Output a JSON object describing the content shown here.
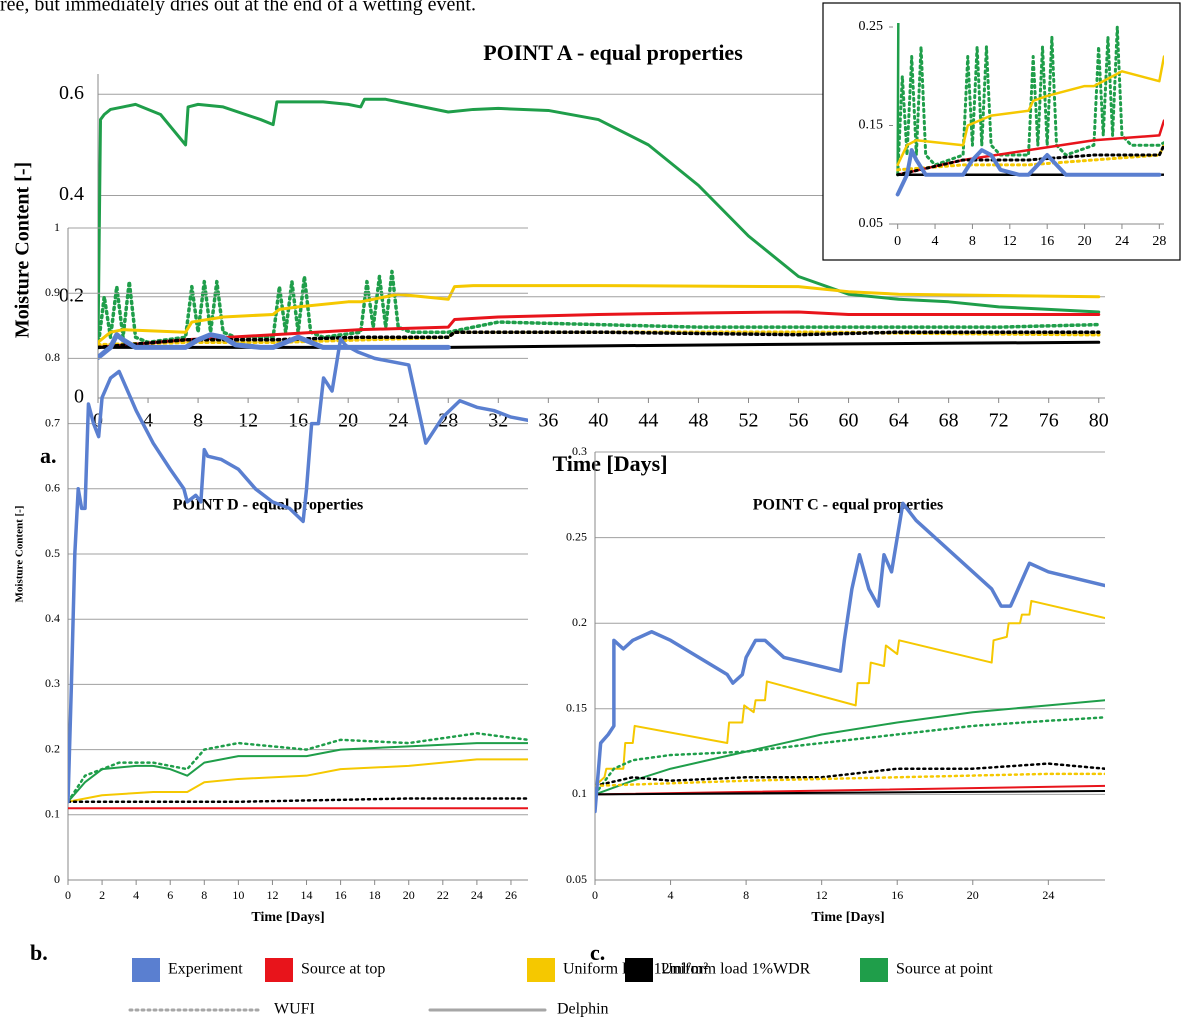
{
  "text_fragment": "ree, but immediately dries out at the end of a wetting event.",
  "legend": {
    "colors": [
      {
        "name": "Experiment",
        "color": "#5a7fd0"
      },
      {
        "name": "Source at top",
        "color": "#e8141b"
      },
      {
        "name": "Uniform load 12ml/m²",
        "color": "#f5c800"
      },
      {
        "name": "Uniform load 1%WDR",
        "color": "#000000"
      },
      {
        "name": "Source at point",
        "color": "#1f9e4a"
      }
    ],
    "models": [
      {
        "name": "WUFI",
        "dash": "2 4",
        "color": "#a6a6a6"
      },
      {
        "name": "Delphin",
        "dash": "none",
        "color": "#a6a6a6"
      }
    ]
  },
  "chart_data": [
    {
      "type": "line",
      "title": "POINT A - equal properties",
      "label": "a.",
      "xlabel": "Time [Days]",
      "ylabel": "Moisture Content [-]",
      "xlim": [
        0,
        80.5
      ],
      "ylim": [
        0,
        0.64
      ],
      "xticks": [
        0,
        4,
        8,
        12,
        16,
        20,
        24,
        28,
        32,
        36,
        40,
        44,
        48,
        52,
        56,
        60,
        64,
        68,
        72,
        76,
        80
      ],
      "yticks": [
        0,
        0.2,
        0.4,
        0.6
      ],
      "grid": true,
      "series": [
        {
          "name": "Source at point",
          "model": "Delphin",
          "x": [
            0,
            0.2,
            0.5,
            1,
            2,
            3,
            5,
            7,
            7.2,
            8,
            10,
            13,
            14,
            14.3,
            16,
            18,
            20,
            21,
            21.3,
            23,
            25,
            28,
            30,
            32,
            36,
            40,
            44,
            48,
            52,
            56,
            60,
            64,
            68,
            72,
            76,
            80
          ],
          "values": [
            0.1,
            0.55,
            0.56,
            0.57,
            0.575,
            0.58,
            0.56,
            0.5,
            0.575,
            0.58,
            0.575,
            0.55,
            0.54,
            0.585,
            0.585,
            0.585,
            0.58,
            0.575,
            0.59,
            0.59,
            0.58,
            0.565,
            0.57,
            0.572,
            0.568,
            0.55,
            0.5,
            0.42,
            0.32,
            0.24,
            0.205,
            0.195,
            0.19,
            0.18,
            0.175,
            0.17
          ]
        },
        {
          "name": "Source at point",
          "model": "WUFI",
          "x": [
            0,
            0.5,
            1,
            1.5,
            2,
            2.5,
            3,
            4,
            7,
            7.5,
            8,
            8.5,
            9,
            9.5,
            10,
            11,
            14,
            14.5,
            15,
            15.5,
            16,
            16.5,
            17,
            18,
            21,
            21.5,
            22,
            22.5,
            23,
            23.5,
            24,
            25,
            28,
            32,
            40,
            48,
            56,
            64,
            72,
            80
          ],
          "values": [
            0.1,
            0.2,
            0.12,
            0.22,
            0.12,
            0.23,
            0.12,
            0.11,
            0.12,
            0.22,
            0.13,
            0.23,
            0.13,
            0.23,
            0.13,
            0.12,
            0.12,
            0.22,
            0.13,
            0.23,
            0.13,
            0.24,
            0.13,
            0.12,
            0.13,
            0.23,
            0.14,
            0.24,
            0.14,
            0.25,
            0.14,
            0.13,
            0.13,
            0.15,
            0.145,
            0.14,
            0.14,
            0.14,
            0.14,
            0.145
          ]
        },
        {
          "name": "Uniform load 12ml/m²",
          "model": "Delphin",
          "x": [
            0,
            1,
            2,
            7,
            7.5,
            10,
            14,
            14.5,
            16,
            20,
            21,
            23,
            24,
            28,
            28.5,
            30,
            40,
            56,
            60,
            64,
            80
          ],
          "values": [
            0.11,
            0.13,
            0.135,
            0.13,
            0.15,
            0.16,
            0.165,
            0.175,
            0.18,
            0.19,
            0.19,
            0.2,
            0.205,
            0.195,
            0.22,
            0.222,
            0.222,
            0.22,
            0.21,
            0.205,
            0.2
          ]
        },
        {
          "name": "Uniform load 12ml/m²",
          "model": "WUFI",
          "x": [
            0,
            7,
            14,
            21,
            28,
            28.5,
            40,
            56,
            80
          ],
          "values": [
            0.105,
            0.11,
            0.11,
            0.115,
            0.12,
            0.13,
            0.13,
            0.13,
            0.125
          ]
        },
        {
          "name": "Source at top",
          "model": "Delphin",
          "x": [
            0,
            7,
            14,
            21,
            28,
            28.5,
            32,
            40,
            48,
            56,
            60,
            70,
            80
          ],
          "values": [
            0.1,
            0.115,
            0.125,
            0.135,
            0.14,
            0.155,
            0.16,
            0.165,
            0.168,
            0.17,
            0.165,
            0.165,
            0.165
          ]
        },
        {
          "name": "Uniform load 1%WDR",
          "model": "WUFI",
          "x": [
            0,
            7,
            14,
            21,
            28,
            28.5,
            40,
            56,
            64,
            80
          ],
          "values": [
            0.1,
            0.115,
            0.115,
            0.12,
            0.12,
            0.13,
            0.13,
            0.125,
            0.13,
            0.13
          ]
        },
        {
          "name": "Uniform load 1%WDR",
          "model": "Delphin",
          "x": [
            0,
            28,
            40,
            60,
            80
          ],
          "values": [
            0.1,
            0.1,
            0.103,
            0.107,
            0.11
          ]
        },
        {
          "name": "Experiment",
          "x": [
            0,
            1,
            1.5,
            2,
            3,
            4,
            7,
            8,
            9,
            10,
            11,
            13,
            14,
            15,
            16,
            17,
            18,
            21,
            22,
            28
          ],
          "values": [
            0.08,
            0.1,
            0.125,
            0.115,
            0.1,
            0.1,
            0.1,
            0.115,
            0.125,
            0.12,
            0.105,
            0.1,
            0.1,
            0.11,
            0.12,
            0.11,
            0.1,
            0.1,
            0.1,
            0.1
          ]
        }
      ]
    },
    {
      "type": "line",
      "xlim": [
        -0.5,
        28.5
      ],
      "ylim": [
        0.05,
        0.25
      ],
      "xticks": [
        0,
        4,
        8,
        12,
        16,
        20,
        24,
        28
      ],
      "yticks": [
        0.05,
        0.15,
        0.25
      ],
      "grid": false
    },
    {
      "type": "line",
      "title": "POINT D - equal properties",
      "label": "b.",
      "xlabel": "Time [Days]",
      "ylabel": "Moisture Content [-]",
      "xlim": [
        0,
        27
      ],
      "ylim": [
        0,
        1
      ],
      "xticks": [
        0,
        2,
        4,
        6,
        8,
        10,
        12,
        14,
        16,
        18,
        20,
        22,
        24,
        26
      ],
      "yticks": [
        0,
        0.1,
        0.2,
        0.3,
        0.4,
        0.5,
        0.6,
        0.7,
        0.8,
        0.9,
        1
      ],
      "grid": true,
      "series": [
        {
          "name": "Source at point",
          "model": "Delphin",
          "x": [
            0,
            1,
            2,
            4,
            5,
            6,
            7,
            8,
            10,
            14,
            16,
            20,
            24,
            27
          ],
          "values": [
            0.12,
            0.15,
            0.17,
            0.175,
            0.175,
            0.17,
            0.16,
            0.18,
            0.19,
            0.19,
            0.2,
            0.205,
            0.21,
            0.21
          ]
        },
        {
          "name": "Source at point",
          "model": "WUFI",
          "x": [
            0,
            1,
            3,
            5,
            7,
            8,
            10,
            14,
            16,
            20,
            24,
            27
          ],
          "values": [
            0.12,
            0.16,
            0.18,
            0.18,
            0.17,
            0.2,
            0.21,
            0.2,
            0.215,
            0.21,
            0.225,
            0.215
          ]
        },
        {
          "name": "Uniform load 12ml/m²",
          "model": "Delphin",
          "x": [
            0,
            2,
            5,
            7,
            8,
            10,
            14,
            16,
            20,
            24,
            27
          ],
          "values": [
            0.12,
            0.13,
            0.135,
            0.135,
            0.15,
            0.155,
            0.16,
            0.17,
            0.175,
            0.185,
            0.185
          ]
        },
        {
          "name": "Uniform load 1%WDR",
          "model": "WUFI",
          "x": [
            0,
            10,
            20,
            27
          ],
          "values": [
            0.12,
            0.12,
            0.125,
            0.125
          ]
        },
        {
          "name": "Source at top",
          "model": "Delphin",
          "x": [
            0,
            27
          ],
          "values": [
            0.11,
            0.11
          ]
        },
        {
          "name": "Experiment",
          "x": [
            0,
            0.2,
            0.4,
            0.6,
            0.8,
            1,
            1.2,
            1.5,
            1.8,
            2,
            2.5,
            3,
            4,
            5,
            6,
            6.8,
            7,
            7.5,
            7.8,
            8,
            8.2,
            9,
            10,
            11,
            12,
            13,
            13.8,
            14,
            14.3,
            14.7,
            15,
            15.5,
            16,
            16.3,
            17,
            18,
            20,
            21,
            22,
            23,
            24,
            25,
            26,
            27
          ],
          "values": [
            0.12,
            0.3,
            0.5,
            0.6,
            0.57,
            0.57,
            0.73,
            0.7,
            0.68,
            0.74,
            0.77,
            0.78,
            0.72,
            0.67,
            0.63,
            0.6,
            0.58,
            0.59,
            0.58,
            0.66,
            0.65,
            0.645,
            0.63,
            0.6,
            0.58,
            0.57,
            0.55,
            0.6,
            0.7,
            0.7,
            0.77,
            0.75,
            0.83,
            0.82,
            0.81,
            0.8,
            0.79,
            0.67,
            0.71,
            0.735,
            0.725,
            0.72,
            0.71,
            0.705
          ]
        }
      ]
    },
    {
      "type": "line",
      "title": "POINT C - equal properties",
      "label": "c.",
      "xlabel": "Time [Days]",
      "xlim": [
        0,
        27
      ],
      "ylim": [
        0.05,
        0.3
      ],
      "xticks": [
        0,
        4,
        8,
        12,
        16,
        20,
        24
      ],
      "yticks": [
        0.05,
        0.1,
        0.15,
        0.2,
        0.25,
        0.3
      ],
      "grid": true,
      "series": [
        {
          "name": "Uniform load 12ml/m²",
          "model": "Delphin",
          "x": [
            0,
            0.5,
            0.6,
            1.5,
            1.6,
            2,
            2.1,
            7,
            7.1,
            7.8,
            7.9,
            8.4,
            8.5,
            9,
            9.1,
            13.8,
            13.9,
            14.5,
            14.6,
            15.3,
            15.4,
            16,
            16.1,
            21,
            21.1,
            21.8,
            21.9,
            22.5,
            22.6,
            23,
            23.1,
            27
          ],
          "values": [
            0.105,
            0.11,
            0.115,
            0.115,
            0.13,
            0.13,
            0.14,
            0.13,
            0.142,
            0.142,
            0.152,
            0.148,
            0.155,
            0.155,
            0.166,
            0.152,
            0.165,
            0.165,
            0.177,
            0.175,
            0.187,
            0.182,
            0.19,
            0.177,
            0.19,
            0.192,
            0.2,
            0.2,
            0.205,
            0.205,
            0.213,
            0.203
          ]
        },
        {
          "name": "Source at point",
          "model": "Delphin",
          "x": [
            0,
            2,
            4,
            6,
            8,
            10,
            12,
            16,
            20,
            24,
            27
          ],
          "values": [
            0.1,
            0.108,
            0.115,
            0.12,
            0.125,
            0.13,
            0.135,
            0.142,
            0.148,
            0.152,
            0.155
          ]
        },
        {
          "name": "Source at point",
          "model": "WUFI",
          "x": [
            0,
            1,
            2,
            4,
            8,
            12,
            16,
            20,
            24,
            27
          ],
          "values": [
            0.1,
            0.115,
            0.12,
            0.123,
            0.125,
            0.13,
            0.135,
            0.14,
            0.143,
            0.145
          ]
        },
        {
          "name": "Uniform load 1%WDR",
          "model": "WUFI",
          "x": [
            0,
            2,
            4,
            8,
            12,
            16,
            20,
            24,
            27
          ],
          "values": [
            0.105,
            0.11,
            0.108,
            0.11,
            0.11,
            0.115,
            0.115,
            0.118,
            0.115
          ]
        },
        {
          "name": "Uniform load 12ml/m²",
          "model": "WUFI",
          "x": [
            0,
            8,
            16,
            24,
            27
          ],
          "values": [
            0.105,
            0.108,
            0.11,
            0.112,
            0.112
          ]
        },
        {
          "name": "Source at top",
          "model": "Delphin",
          "x": [
            0,
            27
          ],
          "values": [
            0.1,
            0.105
          ]
        },
        {
          "name": "Uniform load 1%WDR",
          "model": "Delphin",
          "x": [
            0,
            27
          ],
          "values": [
            0.1,
            0.102
          ]
        },
        {
          "name": "Experiment",
          "x": [
            0,
            0.3,
            0.7,
            1,
            1,
            1.5,
            2,
            3,
            4,
            7,
            7.3,
            7.8,
            8,
            8.5,
            9,
            10,
            13,
            13.2,
            13.6,
            14,
            14.5,
            15,
            15.3,
            15.7,
            16,
            16.3,
            17,
            21,
            21.5,
            22,
            23,
            24,
            27
          ],
          "values": [
            0.09,
            0.13,
            0.135,
            0.14,
            0.19,
            0.185,
            0.19,
            0.195,
            0.19,
            0.17,
            0.165,
            0.17,
            0.18,
            0.19,
            0.19,
            0.18,
            0.172,
            0.19,
            0.22,
            0.24,
            0.22,
            0.21,
            0.24,
            0.23,
            0.25,
            0.27,
            0.26,
            0.22,
            0.21,
            0.21,
            0.235,
            0.23,
            0.222
          ]
        }
      ]
    }
  ]
}
